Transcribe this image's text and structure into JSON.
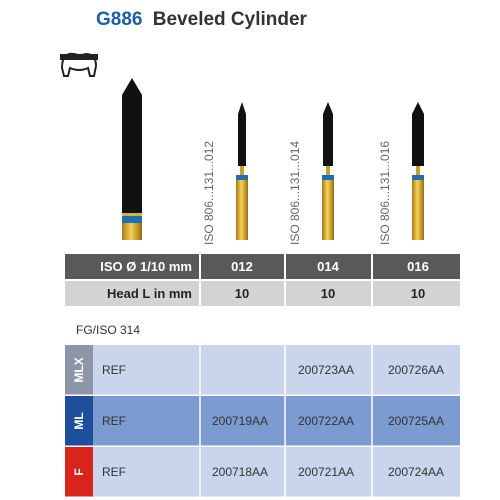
{
  "header": {
    "title_code": "G886",
    "title_name": "Beveled Cylinder"
  },
  "burs": [
    {
      "label": "ISO 806...131...012"
    },
    {
      "label": "ISO 806...131...014"
    },
    {
      "label": "ISO 806...131...016"
    }
  ],
  "specs": {
    "rows": [
      {
        "label": "ISO Ø 1/10 mm",
        "values": [
          "012",
          "014",
          "016"
        ]
      },
      {
        "label": "Head L in mm",
        "values": [
          "10",
          "10",
          "10"
        ]
      }
    ]
  },
  "shank": "FG/ISO 314",
  "ref_table": {
    "rows": [
      {
        "grade": "MLX",
        "label": "REF",
        "values": [
          null,
          "200723AA",
          "200726AA"
        ]
      },
      {
        "grade": "ML",
        "label": "REF",
        "values": [
          "200719AA",
          "200722AA",
          "200725AA"
        ]
      },
      {
        "grade": "F",
        "label": "REF",
        "values": [
          "200718AA",
          "200721AA",
          "200724AA"
        ]
      }
    ]
  }
}
